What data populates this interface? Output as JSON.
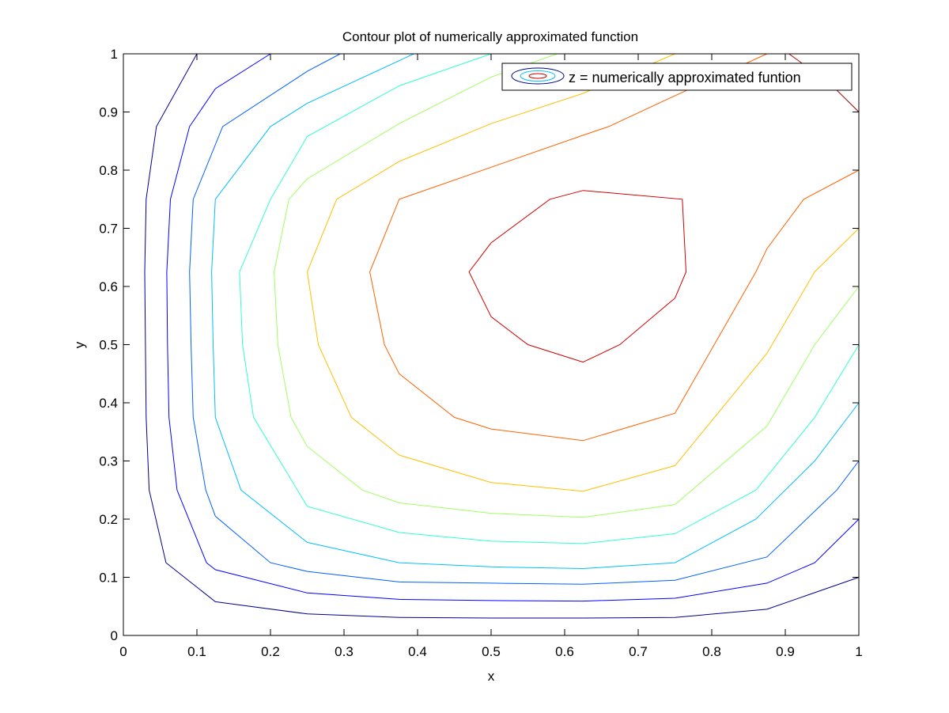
{
  "chart_data": {
    "type": "contour",
    "title": "Contour plot of numerically approximated function",
    "xlabel": "x",
    "ylabel": "y",
    "xlim": [
      0,
      1
    ],
    "ylim": [
      0,
      1
    ],
    "xticks": [
      0,
      0.1,
      0.2,
      0.3,
      0.4,
      0.5,
      0.6,
      0.7,
      0.8,
      0.9,
      1
    ],
    "yticks": [
      0,
      0.1,
      0.2,
      0.3,
      0.4,
      0.5,
      0.6,
      0.7,
      0.8,
      0.9,
      1
    ],
    "xtick_labels": [
      "0",
      "0.1",
      "0.2",
      "0.3",
      "0.4",
      "0.5",
      "0.6",
      "0.7",
      "0.8",
      "0.9",
      "1"
    ],
    "ytick_labels": [
      "0",
      "0.1",
      "0.2",
      "0.3",
      "0.4",
      "0.5",
      "0.6",
      "0.7",
      "0.8",
      "0.9",
      "1"
    ],
    "grid": false,
    "box": true,
    "legend": {
      "label": "z = numerically approximated funtion",
      "position": "top-right"
    },
    "colormap": "jet",
    "series": [
      {
        "color": "#00008f",
        "points": [
          [
            0.1,
            1.0
          ],
          [
            0.045,
            0.875
          ],
          [
            0.031,
            0.75
          ],
          [
            0.029,
            0.625
          ],
          [
            0.03,
            0.5
          ],
          [
            0.031,
            0.375
          ],
          [
            0.035,
            0.25
          ],
          [
            0.058,
            0.125
          ],
          [
            0.125,
            0.058
          ],
          [
            0.25,
            0.037
          ],
          [
            0.375,
            0.031
          ],
          [
            0.5,
            0.03
          ],
          [
            0.625,
            0.03
          ],
          [
            0.75,
            0.031
          ],
          [
            0.875,
            0.045
          ],
          [
            1.0,
            0.1
          ]
        ]
      },
      {
        "color": "#0000ff",
        "points": [
          [
            0.2,
            1.0
          ],
          [
            0.125,
            0.94
          ],
          [
            0.09,
            0.875
          ],
          [
            0.064,
            0.75
          ],
          [
            0.059,
            0.625
          ],
          [
            0.06,
            0.5
          ],
          [
            0.062,
            0.375
          ],
          [
            0.073,
            0.25
          ],
          [
            0.113,
            0.125
          ],
          [
            0.125,
            0.113
          ],
          [
            0.25,
            0.073
          ],
          [
            0.375,
            0.062
          ],
          [
            0.5,
            0.06
          ],
          [
            0.625,
            0.059
          ],
          [
            0.75,
            0.064
          ],
          [
            0.875,
            0.09
          ],
          [
            0.94,
            0.125
          ],
          [
            1.0,
            0.2
          ]
        ]
      },
      {
        "color": "#0060ff",
        "points": [
          [
            0.295,
            1.0
          ],
          [
            0.25,
            0.97
          ],
          [
            0.135,
            0.875
          ],
          [
            0.095,
            0.75
          ],
          [
            0.09,
            0.625
          ],
          [
            0.092,
            0.5
          ],
          [
            0.095,
            0.375
          ],
          [
            0.112,
            0.25
          ],
          [
            0.125,
            0.205
          ],
          [
            0.2,
            0.125
          ],
          [
            0.25,
            0.11
          ],
          [
            0.375,
            0.092
          ],
          [
            0.5,
            0.09
          ],
          [
            0.625,
            0.088
          ],
          [
            0.75,
            0.095
          ],
          [
            0.875,
            0.135
          ],
          [
            0.97,
            0.25
          ],
          [
            1.0,
            0.3
          ]
        ]
      },
      {
        "color": "#00bfff",
        "points": [
          [
            0.395,
            1.0
          ],
          [
            0.25,
            0.915
          ],
          [
            0.2,
            0.875
          ],
          [
            0.125,
            0.75
          ],
          [
            0.12,
            0.625
          ],
          [
            0.122,
            0.5
          ],
          [
            0.125,
            0.375
          ],
          [
            0.16,
            0.25
          ],
          [
            0.25,
            0.16
          ],
          [
            0.375,
            0.125
          ],
          [
            0.5,
            0.118
          ],
          [
            0.625,
            0.115
          ],
          [
            0.75,
            0.125
          ],
          [
            0.86,
            0.2
          ],
          [
            0.94,
            0.3
          ],
          [
            1.0,
            0.4
          ]
        ]
      },
      {
        "color": "#30ffcf",
        "points": [
          [
            0.5,
            1.0
          ],
          [
            0.375,
            0.945
          ],
          [
            0.25,
            0.858
          ],
          [
            0.2,
            0.75
          ],
          [
            0.158,
            0.625
          ],
          [
            0.162,
            0.5
          ],
          [
            0.177,
            0.375
          ],
          [
            0.25,
            0.222
          ],
          [
            0.375,
            0.177
          ],
          [
            0.5,
            0.162
          ],
          [
            0.625,
            0.158
          ],
          [
            0.75,
            0.175
          ],
          [
            0.86,
            0.25
          ],
          [
            0.94,
            0.375
          ],
          [
            1.0,
            0.5
          ]
        ]
      },
      {
        "color": "#a0ff60",
        "points": [
          [
            0.59,
            1.0
          ],
          [
            0.5,
            0.96
          ],
          [
            0.375,
            0.88
          ],
          [
            0.25,
            0.785
          ],
          [
            0.225,
            0.75
          ],
          [
            0.205,
            0.625
          ],
          [
            0.21,
            0.5
          ],
          [
            0.228,
            0.375
          ],
          [
            0.25,
            0.325
          ],
          [
            0.325,
            0.25
          ],
          [
            0.375,
            0.228
          ],
          [
            0.5,
            0.21
          ],
          [
            0.625,
            0.203
          ],
          [
            0.75,
            0.225
          ],
          [
            0.875,
            0.36
          ],
          [
            0.94,
            0.5
          ],
          [
            1.0,
            0.6
          ]
        ]
      },
      {
        "color": "#ffbf00",
        "points": [
          [
            0.75,
            1.0
          ],
          [
            0.625,
            0.932
          ],
          [
            0.5,
            0.88
          ],
          [
            0.375,
            0.815
          ],
          [
            0.29,
            0.75
          ],
          [
            0.25,
            0.625
          ],
          [
            0.265,
            0.5
          ],
          [
            0.31,
            0.375
          ],
          [
            0.375,
            0.31
          ],
          [
            0.5,
            0.263
          ],
          [
            0.625,
            0.248
          ],
          [
            0.75,
            0.292
          ],
          [
            0.875,
            0.485
          ],
          [
            0.94,
            0.625
          ],
          [
            1.0,
            0.7
          ]
        ]
      },
      {
        "color": "#ff6000",
        "points": [
          [
            0.875,
            1.0
          ],
          [
            0.75,
            0.928
          ],
          [
            0.66,
            0.875
          ],
          [
            0.625,
            0.86
          ],
          [
            0.375,
            0.75
          ],
          [
            0.335,
            0.625
          ],
          [
            0.355,
            0.5
          ],
          [
            0.375,
            0.45
          ],
          [
            0.45,
            0.375
          ],
          [
            0.5,
            0.355
          ],
          [
            0.625,
            0.335
          ],
          [
            0.75,
            0.382
          ],
          [
            0.86,
            0.625
          ],
          [
            0.875,
            0.665
          ],
          [
            0.925,
            0.75
          ],
          [
            1.0,
            0.8
          ]
        ]
      },
      {
        "color": "#cf0000",
        "points": [
          [
            0.625,
            0.47
          ],
          [
            0.675,
            0.5
          ],
          [
            0.75,
            0.58
          ],
          [
            0.765,
            0.625
          ],
          [
            0.76,
            0.75
          ],
          [
            0.625,
            0.765
          ],
          [
            0.58,
            0.75
          ],
          [
            0.5,
            0.675
          ],
          [
            0.47,
            0.625
          ],
          [
            0.5,
            0.548
          ],
          [
            0.55,
            0.5
          ],
          [
            0.625,
            0.47
          ]
        ]
      },
      {
        "color": "#a00000",
        "points": [
          [
            0.905,
            1.0
          ],
          [
            0.96,
            0.95
          ],
          [
            1.0,
            0.9
          ]
        ]
      }
    ]
  }
}
